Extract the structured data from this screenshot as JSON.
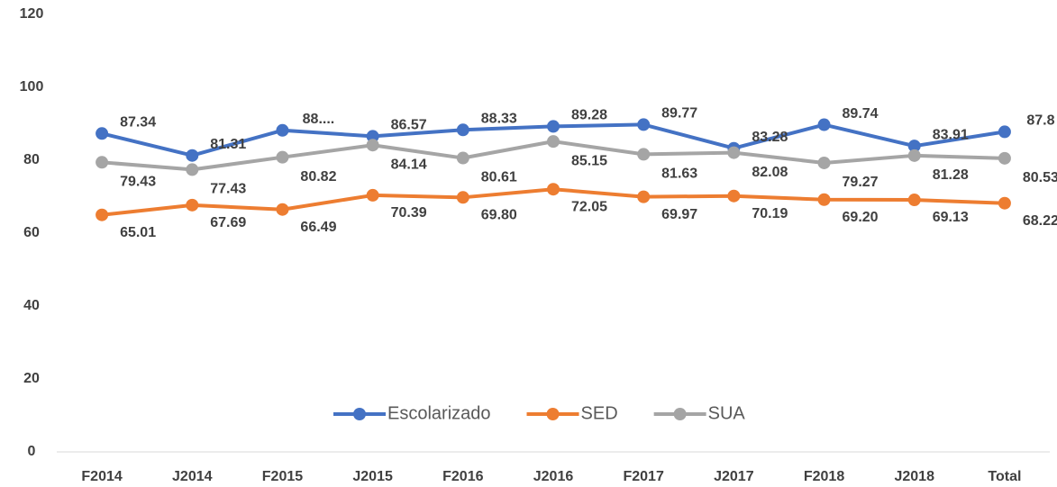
{
  "chart_data": {
    "type": "line",
    "categories": [
      "F2014",
      "J2014",
      "F2015",
      "J2015",
      "F2016",
      "J2016",
      "F2017",
      "J2017",
      "F2018",
      "J2018",
      "Total"
    ],
    "series": [
      {
        "name": "Escolarizado",
        "color": "#4472c4",
        "values": [
          87.34,
          81.31,
          88.2,
          86.57,
          88.33,
          89.28,
          89.77,
          83.28,
          89.74,
          83.91,
          87.8
        ],
        "value_labels": [
          "87.34",
          "81.31",
          "88....",
          "86.57",
          "88.33",
          "89.28",
          "89.77",
          "83.28",
          "89.74",
          "83.91",
          "87.8"
        ]
      },
      {
        "name": "SED",
        "color": "#ed7d31",
        "values": [
          65.01,
          67.69,
          66.49,
          70.39,
          69.8,
          72.05,
          69.97,
          70.19,
          69.2,
          69.13,
          68.22
        ],
        "value_labels": [
          "65.01",
          "67.69",
          "66.49",
          "70.39",
          "69.80",
          "72.05",
          "69.97",
          "70.19",
          "69.20",
          "69.13",
          "68.22"
        ]
      },
      {
        "name": "SUA",
        "color": "#a5a5a5",
        "values": [
          79.43,
          77.43,
          80.82,
          84.14,
          80.61,
          85.15,
          81.63,
          82.08,
          79.27,
          81.28,
          80.53
        ],
        "value_labels": [
          "79.43",
          "77.43",
          "80.82",
          "84.14",
          "80.61",
          "85.15",
          "81.63",
          "82.08",
          "79.27",
          "81.28",
          "80.53"
        ]
      }
    ],
    "ylim": [
      0,
      120
    ],
    "yticks": [
      0,
      20,
      40,
      60,
      80,
      100,
      120
    ],
    "grid": false,
    "legend": "bottom"
  }
}
